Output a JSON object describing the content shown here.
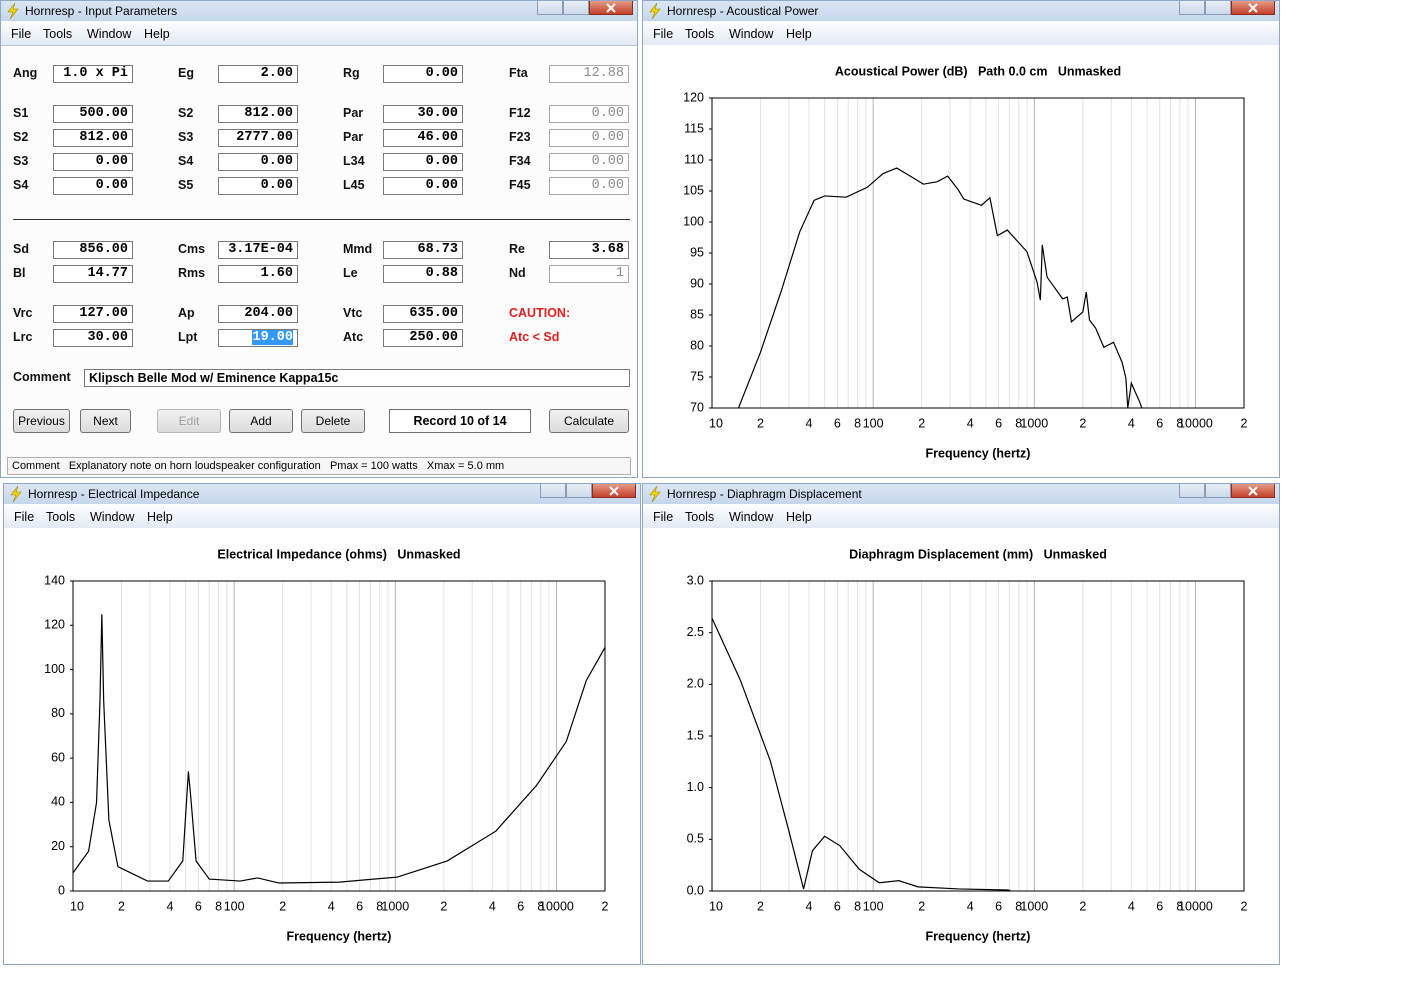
{
  "windows": [
    {
      "title": "Hornresp - Input Parameters",
      "menu": [
        "File",
        "Tools",
        "Window",
        "Help"
      ],
      "form": {
        "rows": [
          [
            {
              "label": "Ang",
              "value": "1.0 x Pi"
            },
            {
              "label": "Eg",
              "value": "2.00"
            },
            {
              "label": "Rg",
              "value": "0.00"
            },
            {
              "label": "Fta",
              "value": "12.88",
              "readonly": true
            }
          ],
          [
            {
              "label": "S1",
              "value": "500.00"
            },
            {
              "label": "S2",
              "value": "812.00"
            },
            {
              "label": "Par",
              "value": "30.00"
            },
            {
              "label": "F12",
              "value": "0.00",
              "readonly": true
            }
          ],
          [
            {
              "label": "S2",
              "value": "812.00"
            },
            {
              "label": "S3",
              "value": "2777.00"
            },
            {
              "label": "Par",
              "value": "46.00"
            },
            {
              "label": "F23",
              "value": "0.00",
              "readonly": true
            }
          ],
          [
            {
              "label": "S3",
              "value": "0.00"
            },
            {
              "label": "S4",
              "value": "0.00"
            },
            {
              "label": "L34",
              "value": "0.00"
            },
            {
              "label": "F34",
              "value": "0.00",
              "readonly": true
            }
          ],
          [
            {
              "label": "S4",
              "value": "0.00"
            },
            {
              "label": "S5",
              "value": "0.00"
            },
            {
              "label": "L45",
              "value": "0.00"
            },
            {
              "label": "F45",
              "value": "0.00",
              "readonly": true
            }
          ],
          [
            {
              "label": "Sd",
              "value": "856.00"
            },
            {
              "label": "Cms",
              "value": "3.17E-04"
            },
            {
              "label": "Mmd",
              "value": "68.73"
            },
            {
              "label": "Re",
              "value": "3.68"
            }
          ],
          [
            {
              "label": "Bl",
              "value": "14.77"
            },
            {
              "label": "Rms",
              "value": "1.60"
            },
            {
              "label": "Le",
              "value": "0.88"
            },
            {
              "label": "Nd",
              "value": "1",
              "readonly": true
            }
          ],
          [
            {
              "label": "Vrc",
              "value": "127.00"
            },
            {
              "label": "Ap",
              "value": "204.00"
            },
            {
              "label": "Vtc",
              "value": "635.00"
            },
            {
              "label": "CAUTION:",
              "warning": true
            }
          ],
          [
            {
              "label": "Lrc",
              "value": "30.00"
            },
            {
              "label": "Lpt",
              "value": "19.00",
              "selected": true
            },
            {
              "label": "Atc",
              "value": "250.00"
            },
            {
              "label": "Atc < Sd",
              "warning": true
            }
          ]
        ],
        "comment": {
          "label": "Comment",
          "value": "Klipsch Belle Mod w/ Eminence Kappa15c"
        },
        "buttons": [
          {
            "label": "Previous"
          },
          {
            "label": "Next"
          },
          {
            "label": "Edit",
            "disabled": true
          },
          {
            "label": "Add"
          },
          {
            "label": "Delete"
          },
          {
            "label": "Record 10 of 14",
            "display": true
          },
          {
            "label": "Calculate"
          }
        ],
        "status": "Comment   Explanatory note on horn loudspeaker configuration   Pmax = 100 watts   Xmax = 5.0 mm"
      }
    },
    {
      "title": "Hornresp - Acoustical Power",
      "menu": [
        "File",
        "Tools",
        "Window",
        "Help"
      ],
      "chart": {
        "type": "line",
        "title": "Acoustical Power (dB)   Path 0.0 cm   Unmasked",
        "x_label": "Frequency (hertz)",
        "log_x": true,
        "grid": true,
        "color": "#000000",
        "xlim": [
          10,
          20000
        ],
        "ylim": [
          70,
          120
        ],
        "xticks": [
          10,
          {
            "value": 20,
            "label": "2"
          },
          {
            "value": 40,
            "label": "4"
          },
          {
            "value": 60,
            "label": "6"
          },
          {
            "value": 80,
            "label": "8"
          },
          100,
          {
            "value": 200,
            "label": "2"
          },
          {
            "value": 400,
            "label": "4"
          },
          {
            "value": 600,
            "label": "6"
          },
          {
            "value": 800,
            "label": "8"
          },
          1000,
          {
            "value": 2000,
            "label": "2"
          },
          {
            "value": 4000,
            "label": "4"
          },
          {
            "value": 6000,
            "label": "6"
          },
          {
            "value": 8000,
            "label": "8"
          },
          10000,
          {
            "value": 20000,
            "label": "2"
          }
        ],
        "xgrid_minor": [
          30,
          50,
          70,
          90,
          300,
          500,
          700,
          900,
          3000,
          5000,
          7000,
          9000
        ],
        "yticks": [
          70,
          75,
          80,
          85,
          90,
          95,
          100,
          105,
          110,
          115,
          120
        ],
        "x": [
          14.6,
          20,
          27,
          35,
          43,
          50,
          68,
          92,
          115,
          140,
          170,
          205,
          250,
          290,
          337,
          365,
          470,
          530,
          590,
          680,
          900,
          1040,
          1090,
          1120,
          1200,
          1500,
          1600,
          1700,
          2000,
          2100,
          2200,
          2400,
          2700,
          3100,
          3500,
          3700,
          3800,
          4000,
          4500,
          4800
        ],
        "values": [
          70,
          79,
          89,
          98.4,
          103.5,
          104.2,
          104,
          105.6,
          107.8,
          108.7,
          107.4,
          106.1,
          106.5,
          107.4,
          105.2,
          103.7,
          102.7,
          103.9,
          97.8,
          98.7,
          95.2,
          90.3,
          87.4,
          96.3,
          91.1,
          87.6,
          87.9,
          83.9,
          85.5,
          88.7,
          84.2,
          82.9,
          79.8,
          80.6,
          77.4,
          74.8,
          70,
          74,
          71,
          69
        ]
      }
    },
    {
      "title": "Hornresp - Electrical Impedance",
      "menu": [
        "File",
        "Tools",
        "Window",
        "Help"
      ],
      "chart": {
        "type": "line",
        "title": "Electrical Impedance (ohms)   Unmasked",
        "x_label": "Frequency (hertz)",
        "log_x": true,
        "grid": true,
        "color": "#000000",
        "xlim": [
          10,
          20000
        ],
        "ylim": [
          0,
          140
        ],
        "xticks": [
          10,
          {
            "value": 20,
            "label": "2"
          },
          {
            "value": 40,
            "label": "4"
          },
          {
            "value": 60,
            "label": "6"
          },
          {
            "value": 80,
            "label": "8"
          },
          100,
          {
            "value": 200,
            "label": "2"
          },
          {
            "value": 400,
            "label": "4"
          },
          {
            "value": 600,
            "label": "6"
          },
          {
            "value": 800,
            "label": "8"
          },
          1000,
          {
            "value": 2000,
            "label": "2"
          },
          {
            "value": 4000,
            "label": "4"
          },
          {
            "value": 6000,
            "label": "6"
          },
          {
            "value": 8000,
            "label": "8"
          },
          10000,
          {
            "value": 20000,
            "label": "2"
          }
        ],
        "xgrid_minor": [
          30,
          50,
          70,
          90,
          300,
          500,
          700,
          900,
          3000,
          5000,
          7000,
          9000
        ],
        "yticks": [
          0,
          20,
          40,
          60,
          80,
          100,
          120,
          140
        ],
        "x": [
          10,
          12.5,
          14,
          14.7,
          15.1,
          15.5,
          16.7,
          19,
          29,
          39,
          48,
          52,
          54,
          58,
          70,
          109,
          140,
          190,
          450,
          1030,
          2100,
          4200,
          7500,
          11500,
          15300,
          20000
        ],
        "values": [
          8.2,
          18,
          40,
          86,
          125,
          86,
          32,
          11,
          4.5,
          4.5,
          13.6,
          54,
          41,
          13.6,
          5.4,
          4.5,
          5.9,
          3.6,
          4,
          6.3,
          13.6,
          27,
          47.6,
          67.5,
          95,
          110
        ]
      }
    },
    {
      "title": "Hornresp - Diaphragm Displacement",
      "menu": [
        "File",
        "Tools",
        "Window",
        "Help"
      ],
      "chart": {
        "type": "line",
        "title": "Diaphragm Displacement (mm)   Unmasked",
        "x_label": "Frequency (hertz)",
        "log_x": true,
        "grid": true,
        "color": "#000000",
        "xlim": [
          10,
          20000
        ],
        "ylim": [
          0,
          3
        ],
        "xticks": [
          10,
          {
            "value": 20,
            "label": "2"
          },
          {
            "value": 40,
            "label": "4"
          },
          {
            "value": 60,
            "label": "6"
          },
          {
            "value": 80,
            "label": "8"
          },
          100,
          {
            "value": 200,
            "label": "2"
          },
          {
            "value": 400,
            "label": "4"
          },
          {
            "value": 600,
            "label": "6"
          },
          {
            "value": 800,
            "label": "8"
          },
          1000,
          {
            "value": 2000,
            "label": "2"
          },
          {
            "value": 4000,
            "label": "4"
          },
          {
            "value": 6000,
            "label": "6"
          },
          {
            "value": 8000,
            "label": "8"
          },
          10000,
          {
            "value": 20000,
            "label": "2"
          }
        ],
        "xgrid_minor": [
          30,
          50,
          70,
          90,
          300,
          500,
          700,
          900,
          3000,
          5000,
          7000,
          9000
        ],
        "yticks": [
          {
            "value": 0,
            "label": "0.0"
          },
          0.5,
          {
            "value": 1,
            "label": "1.0"
          },
          1.5,
          {
            "value": 2,
            "label": "2.0"
          },
          2.5,
          {
            "value": 3,
            "label": "3.0"
          }
        ],
        "x": [
          10,
          15,
          23,
          30,
          37,
          42,
          50,
          62,
          82,
          109,
          144,
          190,
          340,
          680,
          710
        ],
        "values": [
          2.64,
          2.04,
          1.26,
          0.58,
          0.02,
          0.39,
          0.53,
          0.44,
          0.21,
          0.08,
          0.1,
          0.04,
          0.02,
          0.01,
          0.005
        ]
      }
    }
  ]
}
